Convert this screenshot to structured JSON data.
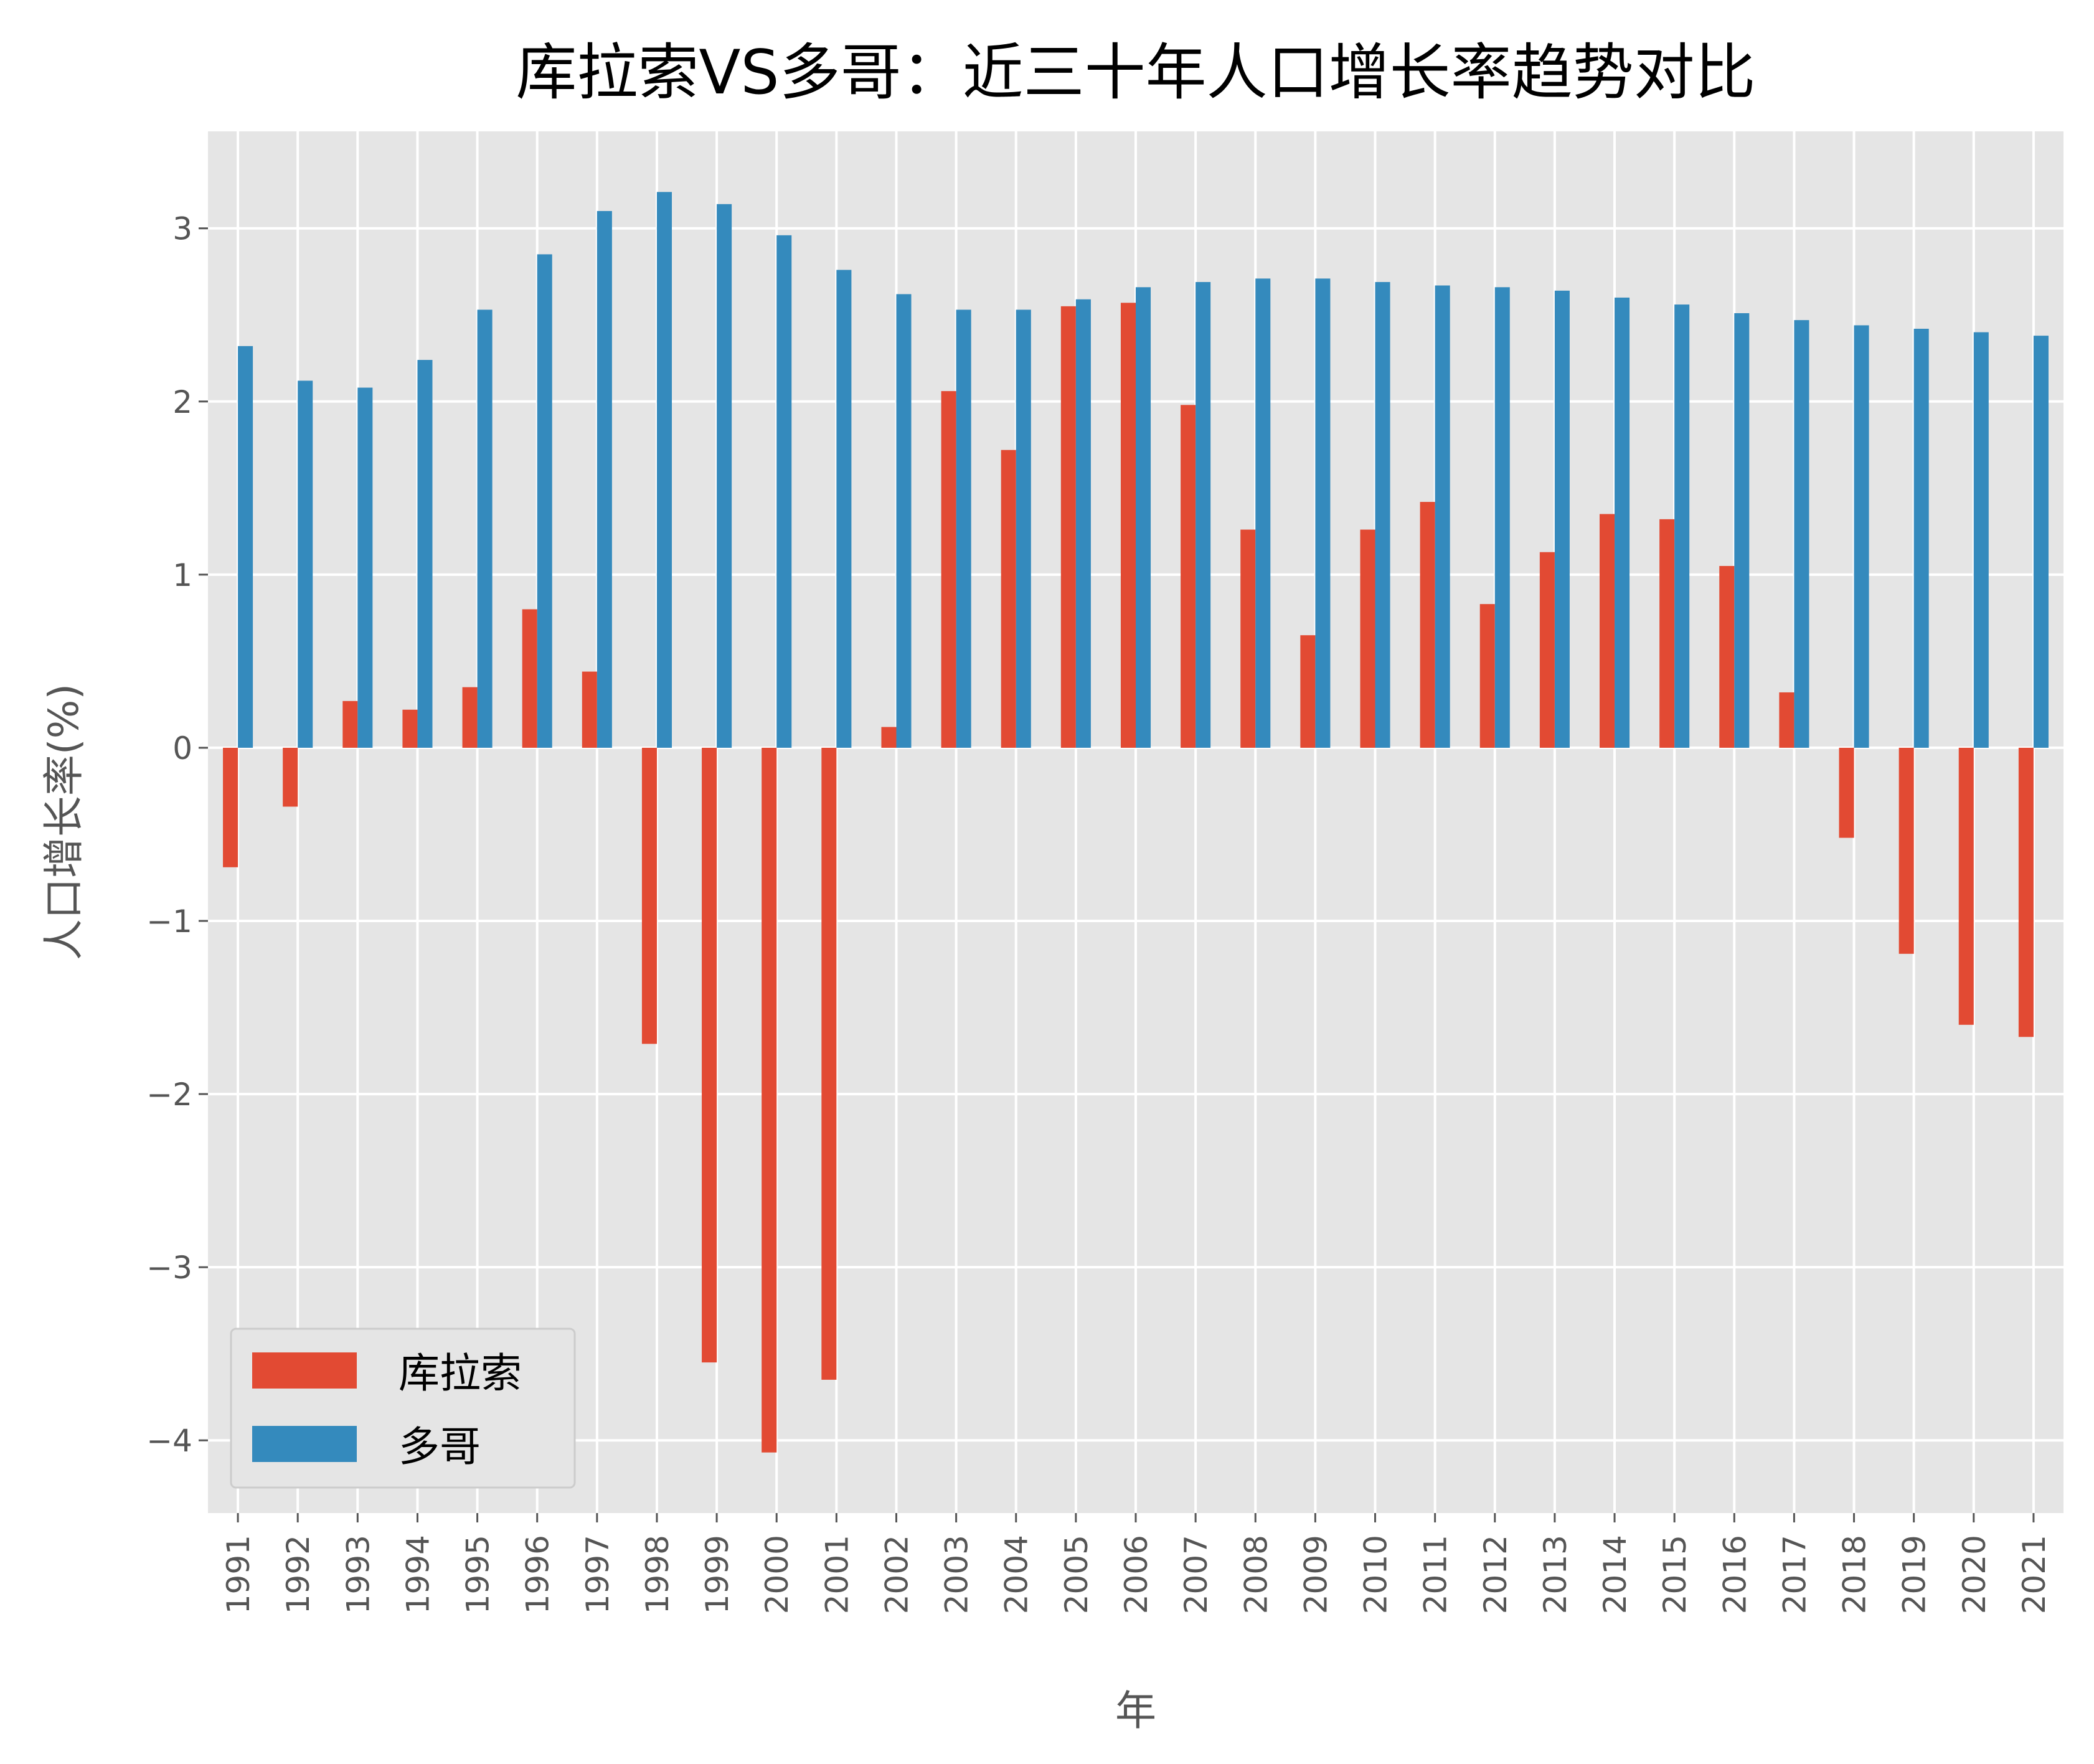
{
  "chart_data": {
    "type": "bar",
    "title": "库拉索VS多哥：近三十年人口增长率趋势对比",
    "xlabel": "年",
    "ylabel": "人口增长率(%)",
    "ylim": [
      -4.42,
      3.56
    ],
    "yticks": [
      -4,
      -3,
      -2,
      -1,
      0,
      1,
      2,
      3
    ],
    "ytick_labels": [
      "−4",
      "−3",
      "−2",
      "−1",
      "0",
      "1",
      "2",
      "3"
    ],
    "grid": true,
    "legend_position": "lower-left",
    "categories": [
      "1991",
      "1992",
      "1993",
      "1994",
      "1995",
      "1996",
      "1997",
      "1998",
      "1999",
      "2000",
      "2001",
      "2002",
      "2003",
      "2004",
      "2005",
      "2006",
      "2007",
      "2008",
      "2009",
      "2010",
      "2011",
      "2012",
      "2013",
      "2014",
      "2015",
      "2016",
      "2017",
      "2018",
      "2019",
      "2020",
      "2021"
    ],
    "series": [
      {
        "name": "库拉索",
        "color": "#E24A33",
        "values": [
          -0.69,
          -0.34,
          0.27,
          0.22,
          0.35,
          0.8,
          0.44,
          -1.71,
          -3.55,
          -4.07,
          -3.65,
          0.12,
          2.06,
          1.72,
          2.55,
          2.57,
          1.98,
          1.26,
          0.65,
          1.26,
          1.42,
          0.83,
          1.13,
          1.35,
          1.32,
          1.05,
          0.32,
          -0.52,
          -1.19,
          -1.6,
          -1.67
        ]
      },
      {
        "name": "多哥",
        "color": "#348ABD",
        "values": [
          2.32,
          2.12,
          2.08,
          2.24,
          2.53,
          2.85,
          3.1,
          3.21,
          3.14,
          2.96,
          2.76,
          2.62,
          2.53,
          2.53,
          2.59,
          2.66,
          2.69,
          2.71,
          2.71,
          2.69,
          2.67,
          2.66,
          2.64,
          2.6,
          2.56,
          2.51,
          2.47,
          2.44,
          2.42,
          2.4,
          2.38
        ]
      }
    ]
  }
}
